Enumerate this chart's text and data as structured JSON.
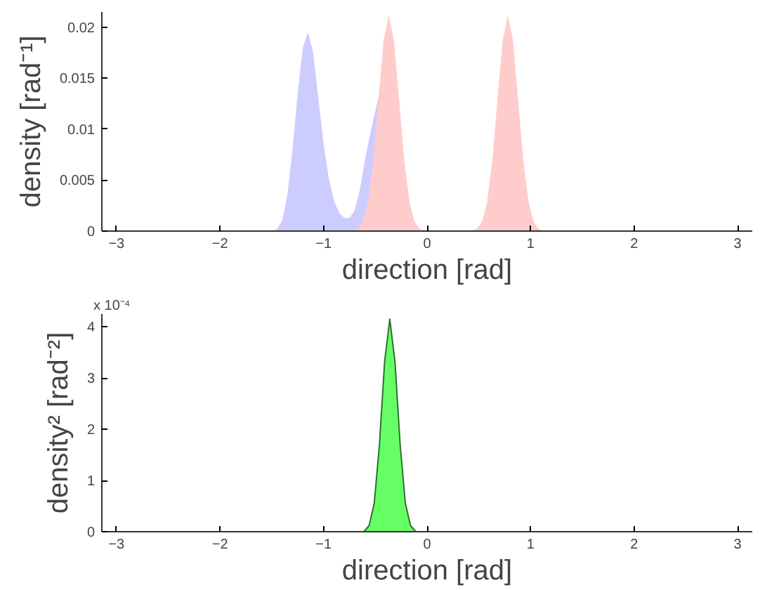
{
  "chart_data": [
    {
      "type": "area",
      "xlabel": "direction [rad]",
      "ylabel": "density [rad⁻¹]",
      "xlim": [
        -3.1416,
        3.1416
      ],
      "xticks": [
        -3,
        -2,
        -1,
        0,
        1,
        2,
        3
      ],
      "ylim": [
        0,
        0.0215
      ],
      "yticks": [
        0,
        0.005,
        0.01,
        0.015,
        0.02
      ],
      "grid": false,
      "series": [
        {
          "color": "#ccccff",
          "x": [
            -3.1416,
            -1.5,
            -1.45,
            -1.4,
            -1.35,
            -1.3,
            -1.25,
            -1.2,
            -1.15,
            -1.1,
            -1.05,
            -1.0,
            -0.95,
            -0.9,
            -0.85,
            -0.8,
            -0.75,
            -0.7,
            -0.65,
            -0.6,
            -0.55,
            -0.5,
            -0.45
          ],
          "values": [
            0,
            0,
            0.0002,
            0.001,
            0.0035,
            0.008,
            0.0135,
            0.018,
            0.0195,
            0.0175,
            0.013,
            0.0086,
            0.0052,
            0.003,
            0.0018,
            0.0013,
            0.0013,
            0.002,
            0.004,
            0.007,
            0.0095,
            0.0118,
            0.014
          ]
        },
        {
          "color": "#ffcccc",
          "x": [
            -3.1416,
            -0.72,
            -0.67,
            -0.62,
            -0.57,
            -0.52,
            -0.47,
            -0.42,
            -0.37,
            -0.32,
            -0.27,
            -0.22,
            -0.17,
            -0.12,
            -0.07,
            -0.02,
            0.43,
            0.48,
            0.53,
            0.58,
            0.63,
            0.68,
            0.73,
            0.78,
            0.83,
            0.88,
            0.93,
            0.98,
            1.03,
            1.08,
            1.13,
            3.1416
          ],
          "values": [
            0,
            0,
            0.0002,
            0.0009,
            0.0029,
            0.0069,
            0.0129,
            0.0187,
            0.0212,
            0.0187,
            0.0129,
            0.0069,
            0.0029,
            0.0009,
            0.0002,
            0,
            0,
            0.0002,
            0.0009,
            0.0029,
            0.0069,
            0.0129,
            0.0187,
            0.0212,
            0.0187,
            0.0129,
            0.0069,
            0.0029,
            0.0009,
            0.0002,
            0,
            0
          ]
        }
      ]
    },
    {
      "type": "area",
      "xlabel": "direction [rad]",
      "ylabel": "density² [rad⁻²]",
      "annotations": [
        "x 10⁻⁴"
      ],
      "xlim": [
        -3.1416,
        3.1416
      ],
      "xticks": [
        -3,
        -2,
        -1,
        0,
        1,
        2,
        3
      ],
      "ylim": [
        0,
        4.25
      ],
      "yticks": [
        0,
        1,
        2,
        3,
        4
      ],
      "grid": false,
      "series": [
        {
          "color": "#66ff66",
          "x": [
            -3.1416,
            -0.61,
            -0.56,
            -0.51,
            -0.46,
            -0.41,
            -0.36,
            -0.31,
            -0.26,
            -0.21,
            -0.16,
            -0.11,
            3.1416
          ],
          "values": [
            0,
            0,
            0.12,
            0.56,
            1.7,
            3.32,
            4.15,
            3.32,
            1.7,
            0.56,
            0.12,
            0,
            0
          ]
        }
      ]
    }
  ]
}
